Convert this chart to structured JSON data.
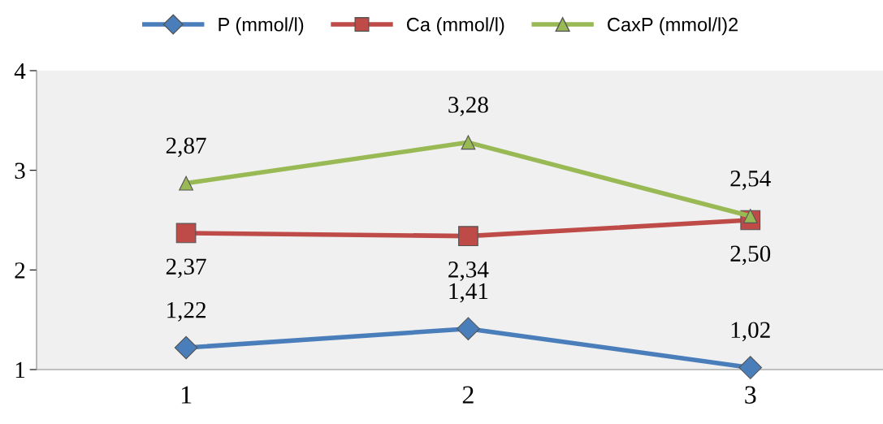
{
  "chart_data": {
    "type": "line",
    "categories": [
      "1",
      "2",
      "3"
    ],
    "series": [
      {
        "name": "P (mmol/l)",
        "color": "#4a7ebb",
        "marker": "diamond",
        "values": [
          1.22,
          1.41,
          1.02
        ],
        "value_labels": [
          "1,22",
          "1,41",
          "1,02"
        ]
      },
      {
        "name": "Ca (mmol/l)",
        "color": "#be4b48",
        "marker": "square",
        "values": [
          2.37,
          2.34,
          2.5
        ],
        "value_labels": [
          "2,37",
          "2,34",
          "2,50"
        ]
      },
      {
        "name": "CaxP (mmol/l)2",
        "color": "#98b954",
        "marker": "triangle",
        "values": [
          2.87,
          3.28,
          2.54
        ],
        "value_labels": [
          "2,87",
          "3,28",
          "2,54"
        ]
      }
    ],
    "ylim": [
      1,
      4
    ],
    "yticks": [
      1,
      2,
      3,
      4
    ],
    "grid": false,
    "legend": "top"
  }
}
